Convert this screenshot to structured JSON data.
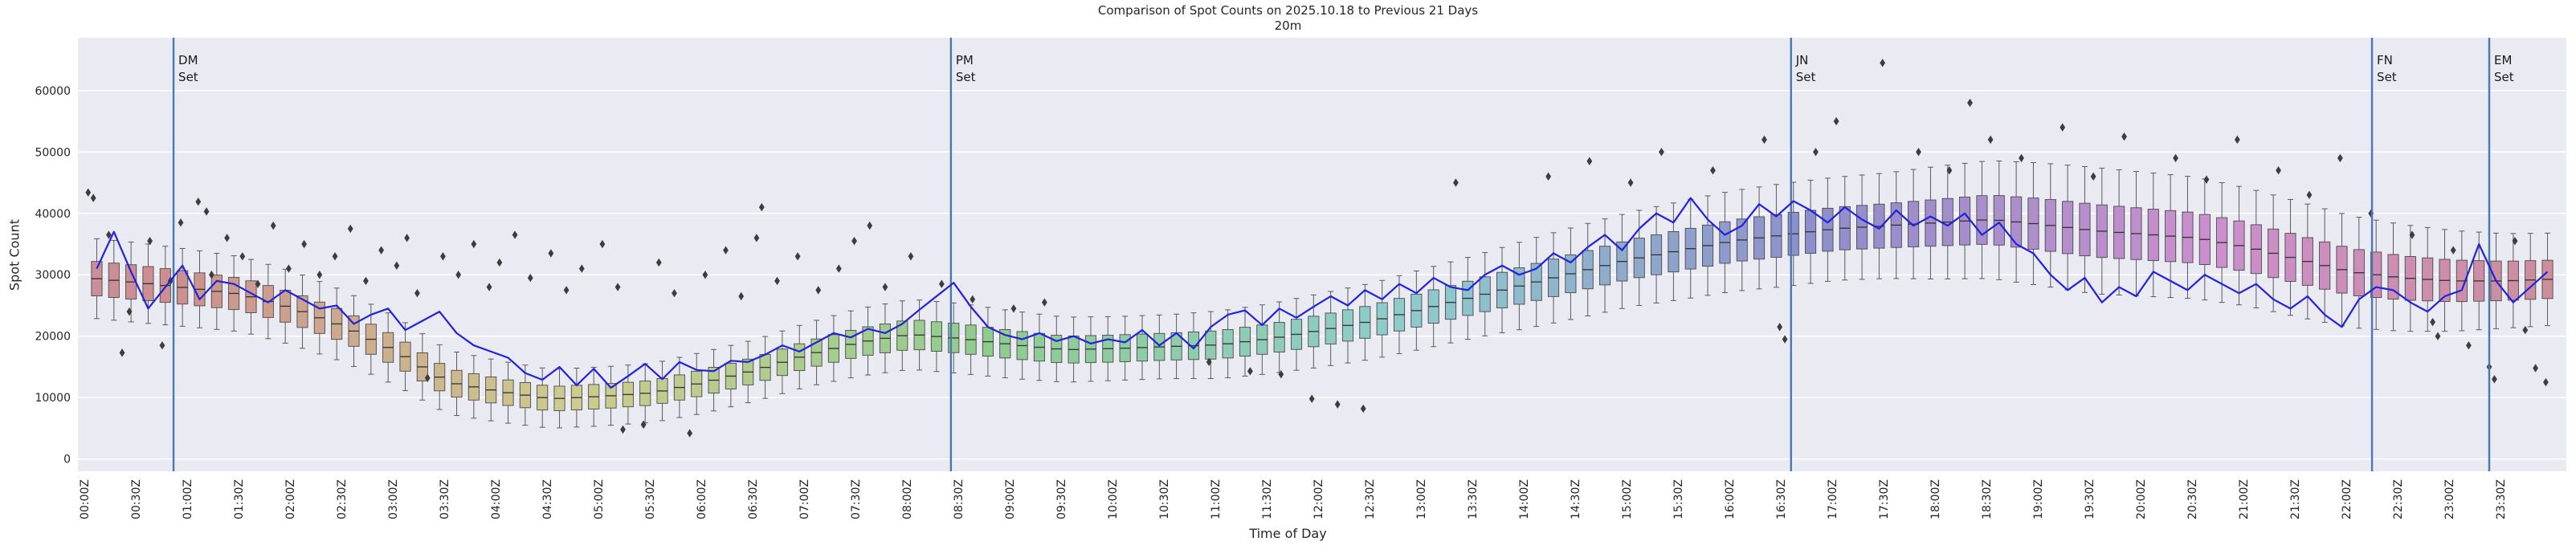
{
  "figure": {
    "title": "Comparison of Spot Counts on 2025.10.18 to Previous 21 Days",
    "subtitle": "20m",
    "xlabel": "Time of Day",
    "ylabel": "Spot Count"
  },
  "chart_data": {
    "type": "boxplot+line",
    "description": "Spot counts per 10-minute bin; boxes = distribution over previous 21 days, blue line = 2025.10.18, diamonds = outliers, vertical lines = grid-field sunset times",
    "bin_minutes": 10,
    "values_unit": "spots (arrays stored in thousands)",
    "x_tick_labels": [
      "00:00Z",
      "00:30Z",
      "01:00Z",
      "01:30Z",
      "02:00Z",
      "02:30Z",
      "03:00Z",
      "03:30Z",
      "04:00Z",
      "04:30Z",
      "05:00Z",
      "05:30Z",
      "06:00Z",
      "06:30Z",
      "07:00Z",
      "07:30Z",
      "08:00Z",
      "08:30Z",
      "09:00Z",
      "09:30Z",
      "10:00Z",
      "10:30Z",
      "11:00Z",
      "11:30Z",
      "12:00Z",
      "12:30Z",
      "13:00Z",
      "13:30Z",
      "14:00Z",
      "14:30Z",
      "15:00Z",
      "15:30Z",
      "16:00Z",
      "16:30Z",
      "17:00Z",
      "17:30Z",
      "18:00Z",
      "18:30Z",
      "19:00Z",
      "19:30Z",
      "20:00Z",
      "20:30Z",
      "21:00Z",
      "21:30Z",
      "22:00Z",
      "22:30Z",
      "23:00Z",
      "23:30Z"
    ],
    "y_ticks": [
      0,
      10000,
      20000,
      30000,
      40000,
      50000,
      60000
    ],
    "ylim": [
      -2000,
      68600
    ],
    "xlim_hours": [
      -0.1,
      24.1
    ],
    "grid": "horizontal-white",
    "box_series": {
      "name": "Previous 21 Days",
      "anchor_step_hours": 0.5,
      "median_k": [
        29.5,
        28.7,
        27.8,
        26.8,
        24.5,
        21.5,
        17.5,
        12.5,
        11,
        9.8,
        10.2,
        10.8,
        12.5,
        14.5,
        17,
        19,
        20.3,
        19.6,
        18.6,
        17.8,
        18,
        18.3,
        18.6,
        19.6,
        21,
        22.5,
        24.5,
        26.5,
        28.5,
        30.5,
        32.5,
        34,
        35.5,
        36.5,
        37.5,
        38,
        38.5,
        39,
        38.2,
        37.2,
        36.6,
        36,
        34.5,
        32.5,
        30.5,
        29.5,
        29,
        29,
        29.3
      ],
      "iqr_half_k": [
        2.8,
        2.8,
        2.7,
        2.6,
        2.6,
        2.5,
        2.4,
        2.2,
        2.1,
        2.0,
        2.0,
        2.0,
        2.1,
        2.1,
        2.2,
        2.3,
        2.4,
        2.4,
        2.3,
        2.2,
        2.2,
        2.2,
        2.3,
        2.4,
        2.5,
        2.6,
        2.7,
        2.8,
        3.0,
        3.1,
        3.2,
        3.3,
        3.4,
        3.5,
        3.5,
        3.6,
        3.8,
        4.0,
        4.2,
        4.3,
        4.2,
        4.1,
        4.0,
        3.9,
        3.8,
        3.6,
        3.4,
        3.2,
        3.1
      ],
      "whisker_half_k": [
        6.5,
        6.5,
        6.3,
        6.1,
        6.0,
        5.8,
        5.6,
        5.2,
        5.0,
        4.8,
        4.8,
        4.8,
        5.0,
        5.0,
        5.2,
        5.5,
        5.7,
        5.7,
        5.5,
        5.3,
        5.2,
        5.2,
        5.5,
        5.7,
        6.0,
        6.2,
        6.5,
        6.7,
        7.2,
        7.5,
        7.7,
        8.0,
        8.2,
        8.4,
        8.4,
        8.6,
        9.2,
        9.6,
        10.0,
        10.3,
        10.1,
        9.9,
        9.6,
        9.4,
        9.1,
        8.7,
        8.2,
        7.7,
        7.5
      ]
    },
    "day_line": {
      "name": "2025.10.18",
      "values_k": [
        31,
        37,
        30.5,
        24.5,
        28,
        31.5,
        26,
        29,
        28.5,
        27,
        25.5,
        27.5,
        26,
        24.5,
        25,
        22,
        23.5,
        24.5,
        21,
        22.5,
        24,
        20.5,
        18.5,
        17.5,
        16.5,
        14,
        12.9,
        15,
        12,
        14.7,
        11.6,
        13.5,
        15.5,
        13,
        15.8,
        14.5,
        14.3,
        16,
        15.8,
        17,
        18.5,
        17.5,
        19,
        20.5,
        19.8,
        21.2,
        20.5,
        22,
        24.3,
        26.5,
        28.7,
        24.8,
        21.5,
        20.2,
        19.5,
        20.5,
        19.2,
        20,
        18.8,
        19.5,
        19,
        21,
        18.5,
        20.5,
        18,
        21.5,
        23.5,
        24.2,
        21.8,
        24.5,
        23,
        24.8,
        26.5,
        25,
        27.5,
        26,
        28.5,
        27,
        29.5,
        28,
        27.5,
        30,
        31.5,
        30,
        31,
        33.5,
        32,
        34.5,
        36.5,
        34,
        37.5,
        40,
        38.5,
        42.5,
        39,
        36.5,
        38,
        41.5,
        39.5,
        42,
        40.5,
        38.5,
        41,
        39,
        37.5,
        40.5,
        38,
        39.5,
        38,
        40,
        36.5,
        38.5,
        35,
        33.5,
        30,
        27.5,
        29.5,
        25.5,
        28,
        26.5,
        30.5,
        29,
        27.5,
        30,
        28.5,
        27,
        28.5,
        26,
        24.5,
        26.5,
        23.5,
        21.5,
        26,
        28,
        27.5,
        25.5,
        24,
        26.5,
        27.5,
        35,
        29,
        25.5,
        28,
        30.5
      ]
    },
    "outliers_h_vk": [
      [
        0.0,
        43.4
      ],
      [
        0.05,
        42.5
      ],
      [
        0.2,
        36.5
      ],
      [
        0.33,
        17.3
      ],
      [
        0.4,
        24
      ],
      [
        0.6,
        35.5
      ],
      [
        0.72,
        18.5
      ],
      [
        0.8,
        29
      ],
      [
        0.9,
        38.5
      ],
      [
        1.07,
        41.9
      ],
      [
        1.15,
        40.3
      ],
      [
        1.2,
        30
      ],
      [
        1.35,
        36
      ],
      [
        1.5,
        33
      ],
      [
        1.65,
        28.5
      ],
      [
        1.8,
        38
      ],
      [
        1.95,
        31
      ],
      [
        2.1,
        35
      ],
      [
        2.25,
        30
      ],
      [
        2.4,
        33
      ],
      [
        2.55,
        37.5
      ],
      [
        2.7,
        29
      ],
      [
        2.85,
        34
      ],
      [
        3.0,
        31.5
      ],
      [
        3.1,
        36
      ],
      [
        3.2,
        27
      ],
      [
        3.3,
        13.2
      ],
      [
        3.45,
        33
      ],
      [
        3.6,
        30
      ],
      [
        3.75,
        35
      ],
      [
        3.9,
        28
      ],
      [
        4.0,
        32
      ],
      [
        4.15,
        36.5
      ],
      [
        4.3,
        29.5
      ],
      [
        4.5,
        33.5
      ],
      [
        4.65,
        27.5
      ],
      [
        4.8,
        31
      ],
      [
        5.0,
        35
      ],
      [
        5.15,
        28
      ],
      [
        5.2,
        4.8
      ],
      [
        5.4,
        5.6
      ],
      [
        5.55,
        32
      ],
      [
        5.7,
        27
      ],
      [
        5.85,
        4.2
      ],
      [
        6.0,
        30
      ],
      [
        6.2,
        34
      ],
      [
        6.35,
        26.5
      ],
      [
        6.5,
        36
      ],
      [
        6.55,
        41
      ],
      [
        6.7,
        29
      ],
      [
        6.9,
        33
      ],
      [
        7.1,
        27.5
      ],
      [
        7.3,
        31
      ],
      [
        7.45,
        35.5
      ],
      [
        7.6,
        38
      ],
      [
        7.75,
        28
      ],
      [
        8.0,
        33
      ],
      [
        8.3,
        28.5
      ],
      [
        8.6,
        26
      ],
      [
        9.0,
        24.5
      ],
      [
        9.3,
        25.5
      ],
      [
        10.9,
        15.8
      ],
      [
        11.3,
        14.3
      ],
      [
        11.6,
        13.8
      ],
      [
        11.9,
        9.8
      ],
      [
        12.15,
        8.9
      ],
      [
        12.4,
        8.2
      ],
      [
        13.3,
        45
      ],
      [
        14.2,
        46
      ],
      [
        14.6,
        48.5
      ],
      [
        15.0,
        45
      ],
      [
        15.3,
        50
      ],
      [
        15.8,
        47
      ],
      [
        16.3,
        52
      ],
      [
        16.45,
        21.5
      ],
      [
        16.5,
        19.5
      ],
      [
        16.8,
        50
      ],
      [
        17.0,
        55
      ],
      [
        17.45,
        64.5
      ],
      [
        17.8,
        50
      ],
      [
        18.1,
        47
      ],
      [
        18.3,
        58
      ],
      [
        18.5,
        52
      ],
      [
        18.8,
        49
      ],
      [
        19.2,
        54
      ],
      [
        19.5,
        46
      ],
      [
        19.8,
        52.5
      ],
      [
        20.3,
        49
      ],
      [
        20.6,
        45.5
      ],
      [
        20.9,
        52
      ],
      [
        21.3,
        47
      ],
      [
        21.6,
        43
      ],
      [
        21.9,
        49
      ],
      [
        22.2,
        40
      ],
      [
        22.6,
        36.5
      ],
      [
        22.8,
        22.3
      ],
      [
        22.85,
        20
      ],
      [
        23.0,
        34
      ],
      [
        23.15,
        18.5
      ],
      [
        23.35,
        15
      ],
      [
        23.4,
        13
      ],
      [
        23.6,
        35.5
      ],
      [
        23.7,
        21
      ],
      [
        23.8,
        14.8
      ],
      [
        23.9,
        12.5
      ]
    ],
    "sunset_markers": [
      {
        "field": "DM",
        "label_lines": [
          "DM",
          "Set"
        ],
        "hour": 0.83
      },
      {
        "field": "PM",
        "label_lines": [
          "PM",
          "Set"
        ],
        "hour": 8.39
      },
      {
        "field": "JN",
        "label_lines": [
          "JN",
          "Set"
        ],
        "hour": 16.56
      },
      {
        "field": "FN",
        "label_lines": [
          "FN",
          "Set"
        ],
        "hour": 22.21
      },
      {
        "field": "EM",
        "label_lines": [
          "EM",
          "Set"
        ],
        "hour": 23.35
      }
    ],
    "box_palette": {
      "type": "hue-cycle",
      "start_hue": 350,
      "rotation_deg": 360,
      "saturation_pct": 38,
      "lightness_pct": 68
    },
    "colors": {
      "plot_bg": "#eaeaf2",
      "grid": "#ffffff",
      "day_line": "#2222dd",
      "vline": "#4a78b4",
      "flier": "#3d3d3d",
      "box_edge": "#4a4a4a",
      "whisker": "#5a5a5a",
      "text": "#262626"
    }
  }
}
